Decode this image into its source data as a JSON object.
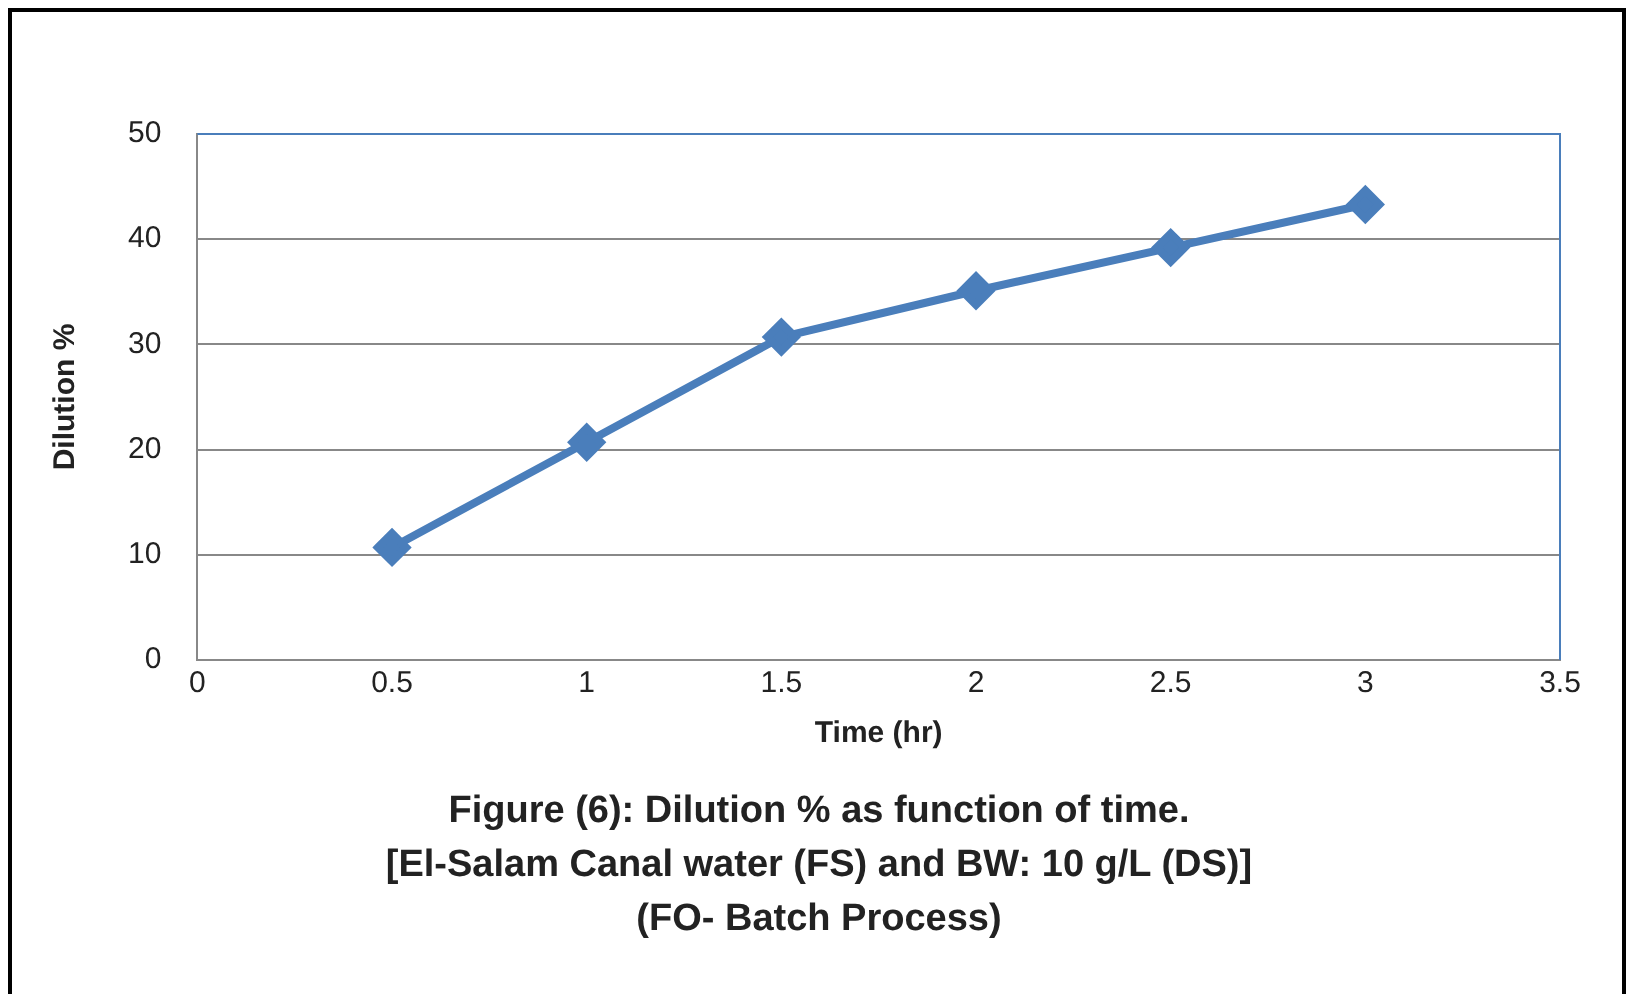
{
  "chart_data": {
    "type": "line",
    "title": "Figure (6): Dilution % as function of time.",
    "subtitle": "[El-Salam Canal water (FS) and BW: 10 g/L (DS)]",
    "annotations": [
      "(FO- Batch Process)"
    ],
    "xlabel": "Time (hr)",
    "ylabel": "Dilution %",
    "x": [
      0.5,
      1,
      1.5,
      2,
      2.5,
      3
    ],
    "series": [
      {
        "color": "#4a7ebb",
        "values": [
          10.7,
          20.7,
          30.7,
          35.1,
          39.2,
          43.3
        ]
      }
    ],
    "xlim": [
      0,
      3.5
    ],
    "xticks": [
      0,
      0.5,
      1,
      1.5,
      2,
      2.5,
      3,
      3.5
    ],
    "ylim": [
      0,
      50
    ],
    "yticks": [
      0,
      10,
      20,
      30,
      40,
      50
    ],
    "grid": "y",
    "legend": false,
    "marker": "diamond",
    "line_style": "solid"
  }
}
